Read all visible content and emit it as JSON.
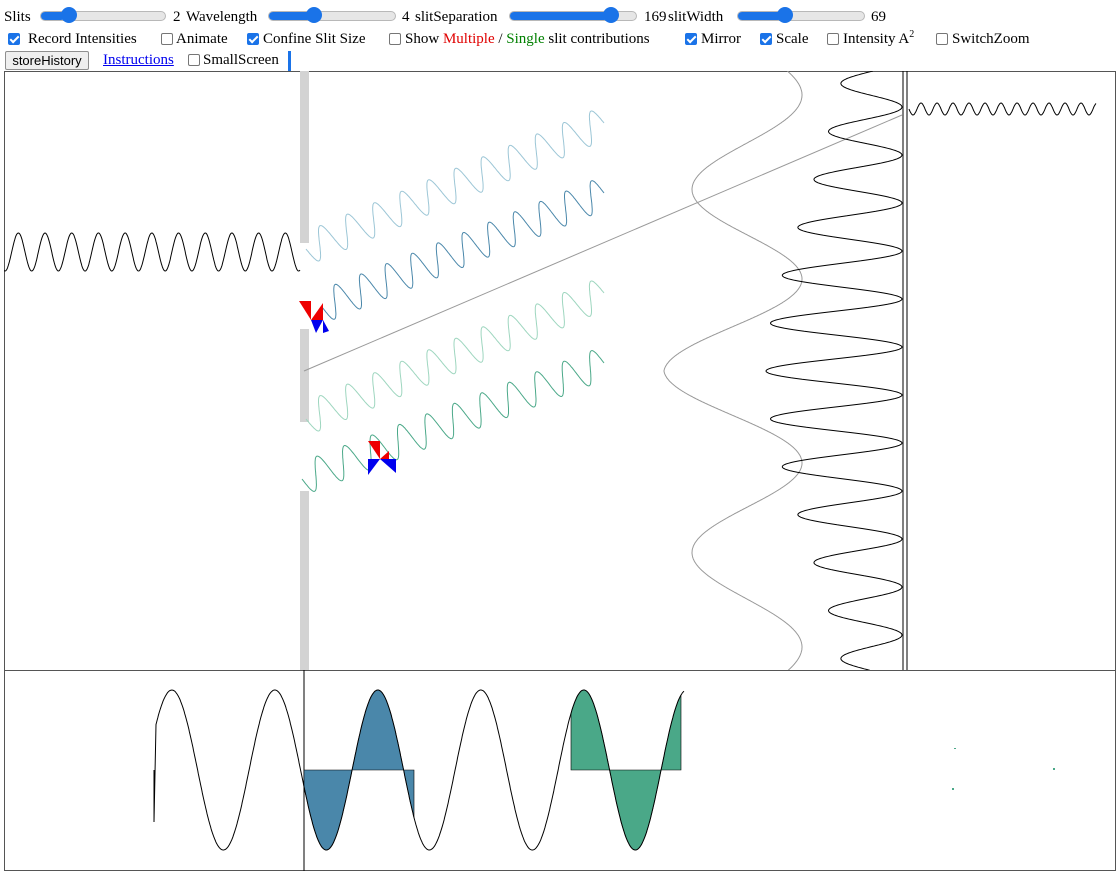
{
  "controls": {
    "slits": {
      "label": "Slits",
      "value": "2"
    },
    "wavelength": {
      "label": "Wavelength",
      "value": "4"
    },
    "slit_separation": {
      "label": "slitSeparation",
      "value": "169"
    },
    "slit_width": {
      "label": "slitWidth",
      "value": "69"
    }
  },
  "options": {
    "record_intensities": {
      "label": "Record Intensities",
      "checked": true
    },
    "animate": {
      "label": "Animate",
      "checked": false
    },
    "confine_slit_size": {
      "label": "Confine Slit Size",
      "checked": true
    },
    "show_contributions": {
      "prefix": "Show",
      "multiple": "Multiple",
      "slash": "/",
      "single": "Single",
      "suffix": "slit contributions",
      "checked": false
    },
    "mirror": {
      "label": "Mirror",
      "checked": true
    },
    "scale": {
      "label": "Scale",
      "checked": true
    },
    "intensity": {
      "label": "Intensity A",
      "superscript": "2",
      "checked": false
    },
    "switch_zoom": {
      "label": "SwitchZoom",
      "checked": false
    },
    "small_screen": {
      "label": "SmallScreen",
      "checked": false
    }
  },
  "toolbar": {
    "store_history_label": "storeHistory",
    "instructions_label": "Instructions"
  },
  "colors": {
    "accent": "#1a73e8",
    "multiple": "#e00000",
    "single": "#008000",
    "slit_wave_1": "#4a87aa",
    "slit_wave_2": "#4aa888",
    "phasor_red": "#ee0000",
    "phasor_blue": "#0000ee",
    "barrier": "#d3d3d3"
  }
}
